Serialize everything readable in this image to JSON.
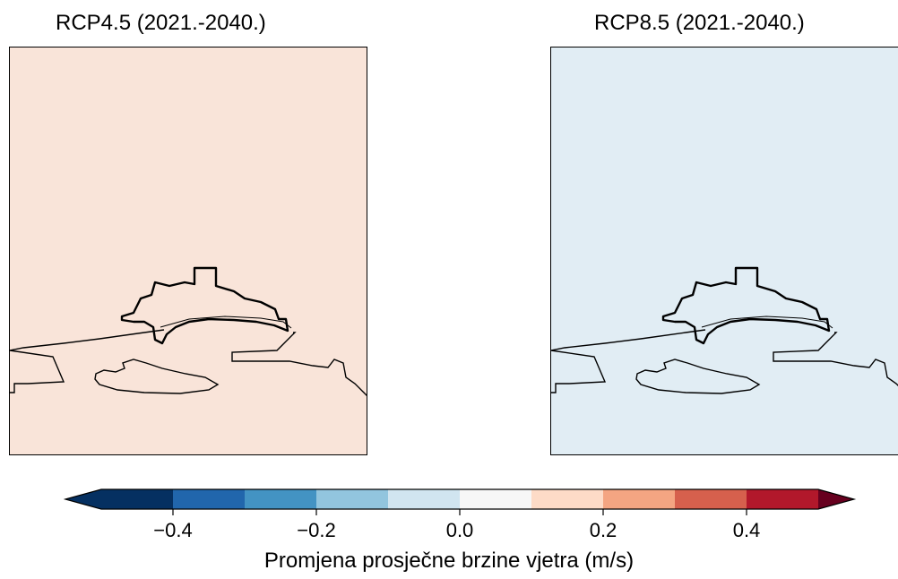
{
  "panels": [
    {
      "title": "RCP4.5 (2021.-2040.)",
      "fill": "#f9e4d9",
      "value_bin": [
        0.0,
        0.1
      ]
    },
    {
      "title": "RCP8.5 (2021.-2040.)",
      "fill": "#e1edf4",
      "value_bin": [
        -0.1,
        0.0
      ]
    }
  ],
  "colorbar": {
    "label": "Promjena prosječne brzine vjetra (m/s)",
    "min": -0.5,
    "max": 0.5,
    "extend": "both",
    "bounds": [
      -0.5,
      -0.4,
      -0.3,
      -0.2,
      -0.1,
      0.0,
      0.1,
      0.2,
      0.3,
      0.4,
      0.5
    ],
    "colors": [
      "#053061",
      "#2166ac",
      "#4393c3",
      "#92c5de",
      "#d1e5f0",
      "#f7f7f7",
      "#fddbc7",
      "#f4a582",
      "#d6604d",
      "#b2182b",
      "#67001f"
    ],
    "ticks": [
      -0.4,
      -0.2,
      0.0,
      0.2,
      0.4
    ],
    "tick_labels": [
      "−0.4",
      "−0.2",
      "0.0",
      "0.2",
      "0.4"
    ]
  }
}
